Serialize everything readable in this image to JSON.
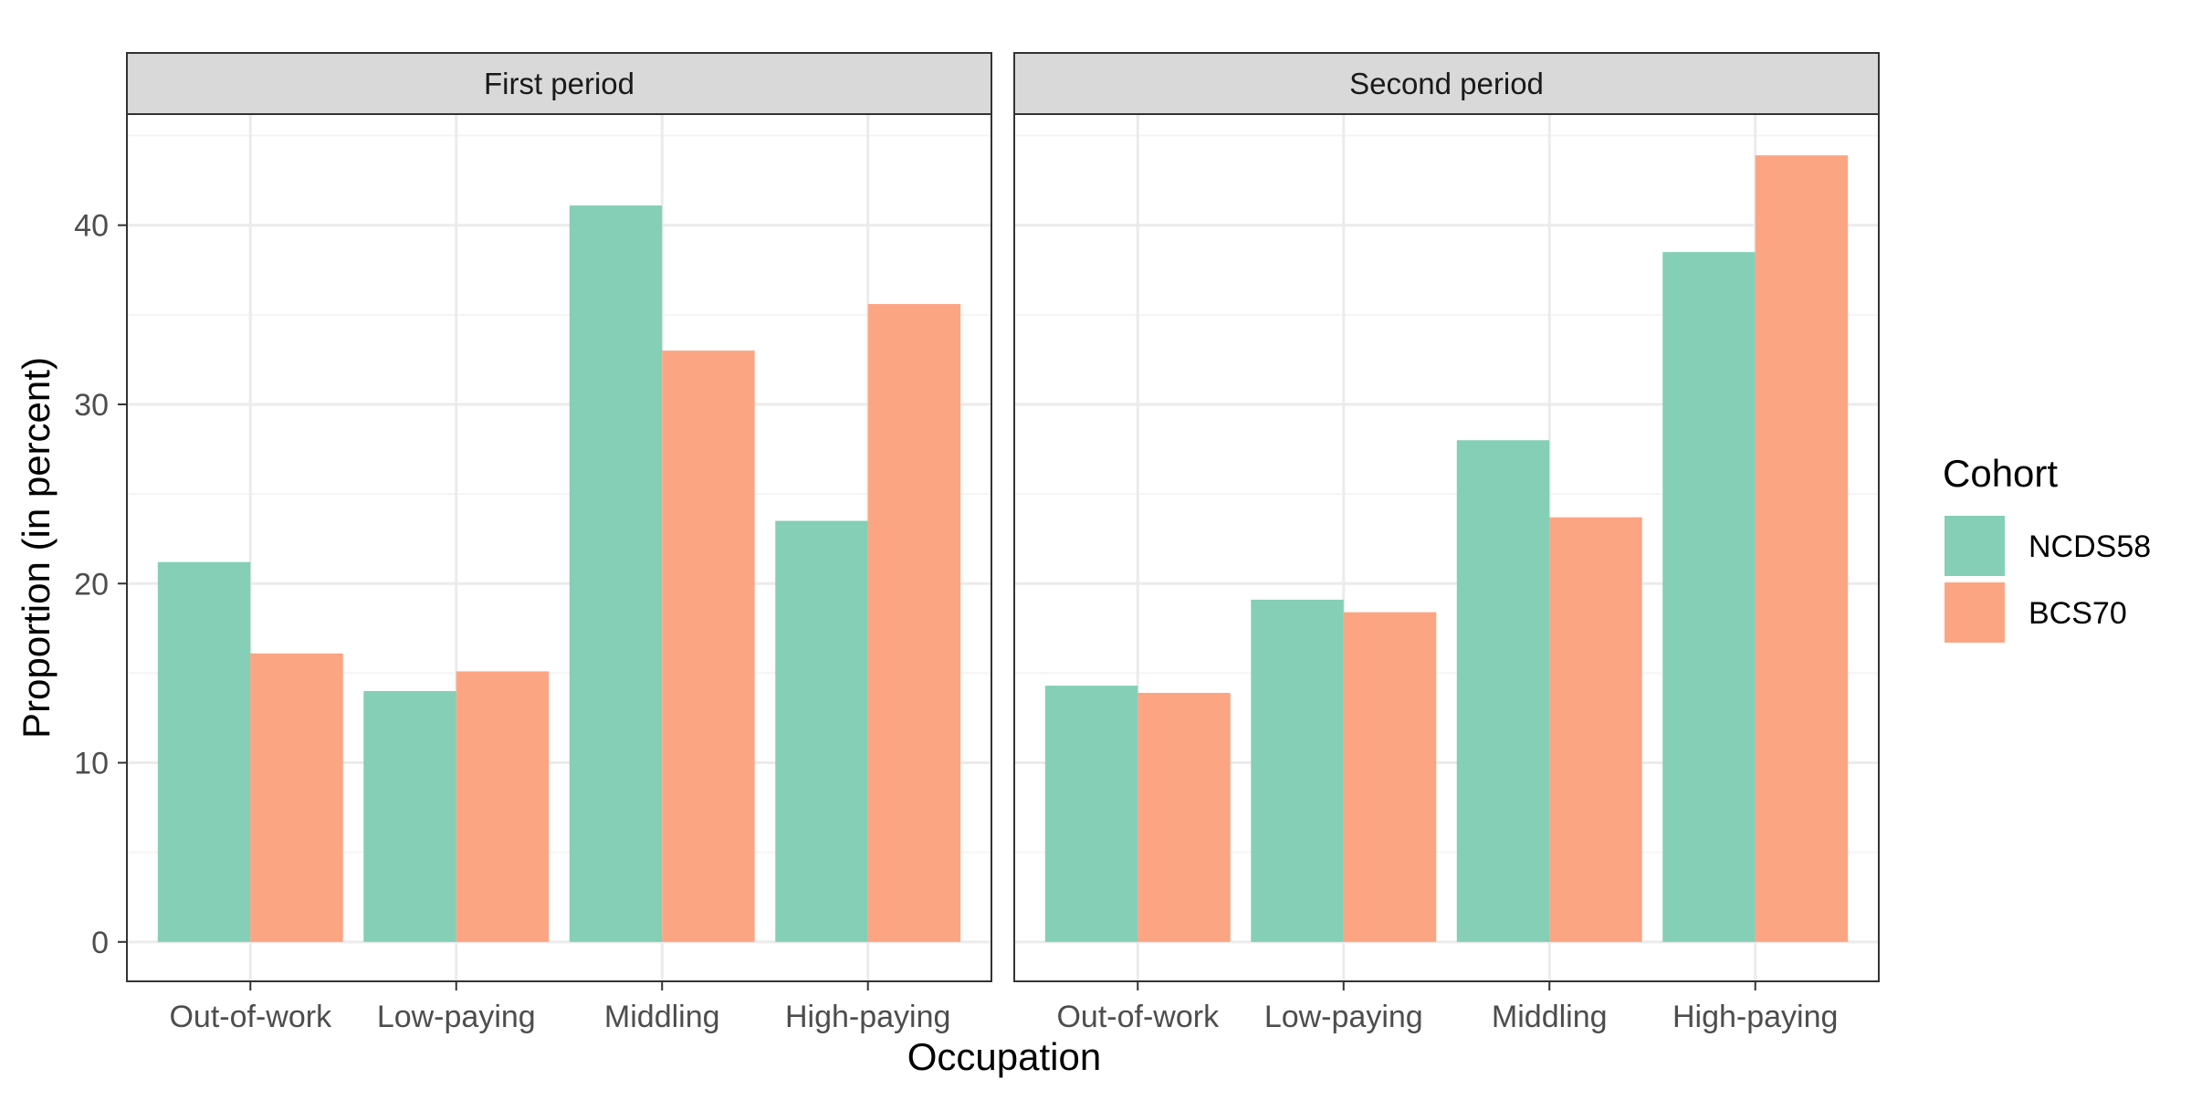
{
  "chart_data": {
    "type": "bar",
    "xlabel": "Occupation",
    "ylabel": "Proportion (in percent)",
    "ylim": [
      -2.2,
      46.2
    ],
    "yticks": [
      0,
      10,
      20,
      30,
      40
    ],
    "grid": true,
    "categories": [
      "Out-of-work",
      "Low-paying",
      "Middling",
      "High-paying"
    ],
    "legend": {
      "title": "Cohort",
      "position": "right",
      "entries": [
        "NCDS58",
        "BCS70"
      ]
    },
    "colors": {
      "NCDS58": "#84cfb6",
      "BCS70": "#fca583",
      "grid_major": "#ebebeb",
      "grid_minor": "#f4f4f4",
      "strip_bg": "#d9d9d9",
      "panel_border": "#333333"
    },
    "facets": [
      {
        "title": "First period",
        "series": [
          {
            "name": "NCDS58",
            "values": [
              21.2,
              14.0,
              41.1,
              23.5
            ]
          },
          {
            "name": "BCS70",
            "values": [
              16.1,
              15.1,
              33.0,
              35.6
            ]
          }
        ]
      },
      {
        "title": "Second period",
        "series": [
          {
            "name": "NCDS58",
            "values": [
              14.3,
              19.1,
              28.0,
              38.5
            ]
          },
          {
            "name": "BCS70",
            "values": [
              13.9,
              18.4,
              23.7,
              43.9
            ]
          }
        ]
      }
    ]
  }
}
